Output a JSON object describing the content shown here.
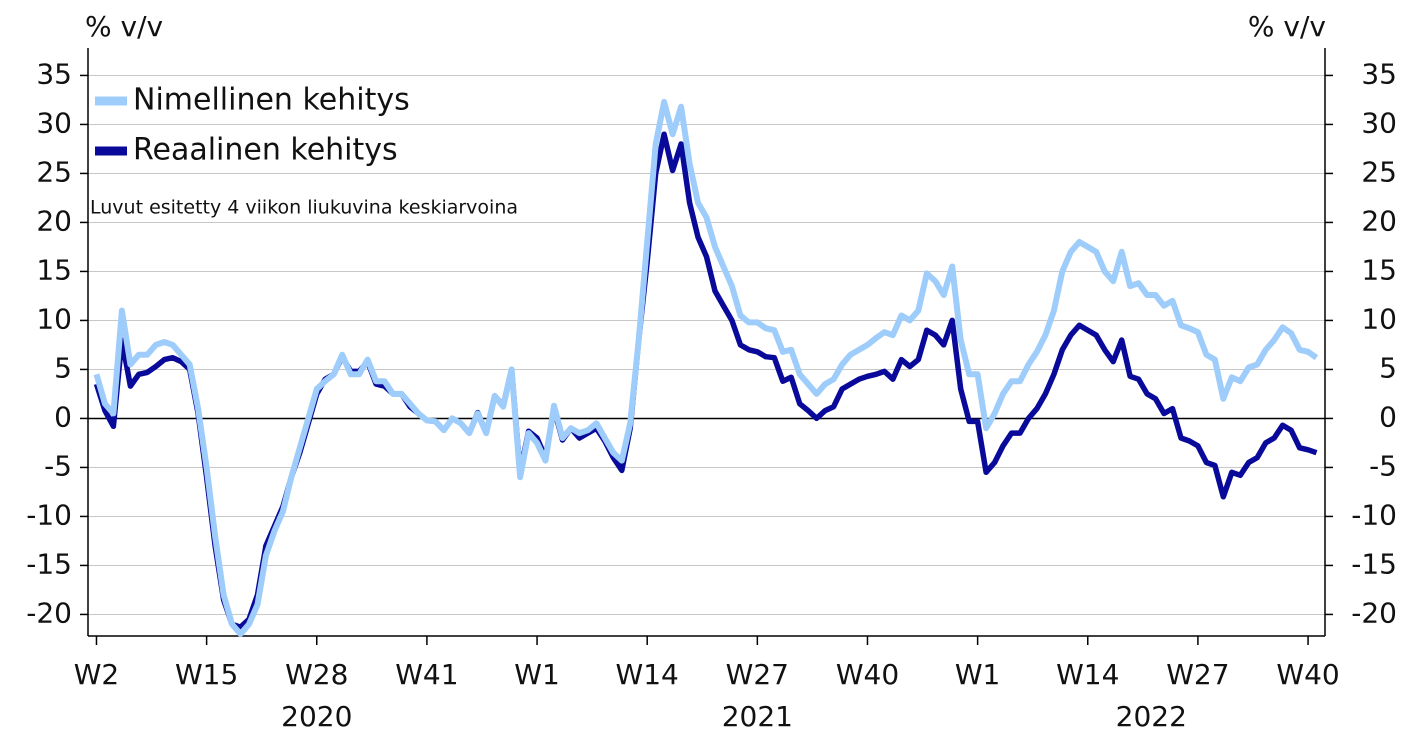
{
  "chart_data": {
    "type": "line",
    "y_label": "% v/v",
    "y2_label": "% v/v",
    "annotation": "Luvut esitetty 4 viikon liukuvina keskiarvoina",
    "legend": "upper left",
    "grid": true,
    "x": [
      0,
      1,
      2,
      3,
      4,
      5,
      6,
      7,
      8,
      9,
      10,
      11,
      12,
      13,
      14,
      15,
      16,
      17,
      18,
      19,
      20,
      21,
      22,
      23,
      24,
      25,
      26,
      27,
      28,
      29,
      30,
      31,
      32,
      33,
      34,
      35,
      36,
      37,
      38,
      39,
      40,
      41,
      42,
      43,
      44,
      45,
      46,
      47,
      48,
      49,
      50,
      51,
      52,
      53,
      54,
      55,
      56,
      57,
      58,
      59,
      60,
      61,
      62,
      63,
      64,
      65,
      66,
      67,
      68,
      69,
      70,
      71,
      72,
      73,
      74,
      75,
      76,
      77,
      78,
      79,
      80,
      81,
      82,
      83,
      84,
      85,
      86,
      87,
      88,
      89,
      90,
      91,
      92,
      93,
      94,
      95,
      96,
      97,
      98,
      99,
      100,
      101,
      102,
      103,
      104,
      105,
      106,
      107,
      108,
      109,
      110,
      111,
      112,
      113,
      114,
      115,
      116,
      117,
      118,
      119,
      120,
      121,
      122,
      123,
      124,
      125,
      126,
      127,
      128,
      129,
      130,
      131,
      132,
      133,
      134,
      135,
      136,
      137,
      138,
      139,
      140,
      141,
      142,
      143,
      144
    ],
    "xlim": [
      -1,
      145
    ],
    "xticks": [
      {
        "value": 0,
        "label": "W2"
      },
      {
        "value": 13,
        "label": "W15"
      },
      {
        "value": 26,
        "label": "W28"
      },
      {
        "value": 39,
        "label": "W41"
      },
      {
        "value": 52,
        "label": "W1"
      },
      {
        "value": 65,
        "label": "W14"
      },
      {
        "value": 78,
        "label": "W27"
      },
      {
        "value": 91,
        "label": "W40"
      },
      {
        "value": 104,
        "label": "W1"
      },
      {
        "value": 117,
        "label": "W14"
      },
      {
        "value": 130,
        "label": "W27"
      },
      {
        "value": 143,
        "label": "W40"
      }
    ],
    "year_labels": [
      {
        "value": 26,
        "label": "2020"
      },
      {
        "value": 78,
        "label": "2021"
      },
      {
        "value": 124.5,
        "label": "2022"
      }
    ],
    "ylim": [
      -22.2,
      37.8
    ],
    "yticks": [
      -20,
      -15,
      -10,
      -5,
      0,
      5,
      10,
      15,
      20,
      25,
      30,
      35
    ],
    "y2lim": [
      -22.2,
      37.8
    ],
    "y2ticks": [
      -20,
      -15,
      -10,
      -5,
      0,
      5,
      10,
      15,
      20,
      25,
      30,
      35
    ],
    "series": [
      {
        "name": "Nimellinen kehitys",
        "color": "#9fcdfb",
        "values": [
          4.5,
          1.5,
          0.5,
          11,
          5.5,
          6.5,
          6.5,
          7.5,
          7.8,
          7.5,
          6.5,
          5.5,
          1,
          -5,
          -12,
          -18,
          -21,
          -22,
          -21,
          -19,
          -14,
          -11.5,
          -9.5,
          -6,
          -3,
          0,
          3,
          3.8,
          4.5,
          6.5,
          4.5,
          4.5,
          6,
          3.8,
          3.8,
          2.5,
          2.5,
          1.5,
          0.5,
          -0.2,
          -0.3,
          -1.2,
          0,
          -0.5,
          -1.5,
          0.5,
          -1.5,
          2.3,
          1.2,
          5,
          -6,
          -1.5,
          -2.5,
          -4.3,
          1.3,
          -2,
          -1,
          -1.5,
          -1.2,
          -0.5,
          -2,
          -3.5,
          -4.3,
          -0.5,
          8,
          18,
          28,
          32.3,
          29,
          31.8,
          26,
          22,
          20.5,
          17.5,
          15.5,
          13.5,
          10.5,
          9.8,
          9.8,
          9.2,
          9,
          6.8,
          7,
          4.5,
          3.5,
          2.5,
          3.5,
          4,
          5.5,
          6.5,
          7,
          7.5,
          8.2,
          8.8,
          8.5,
          10.5,
          10,
          11,
          14.8,
          14,
          12.6,
          15.5,
          8,
          4.5,
          4.5,
          -1,
          0.5,
          2.5,
          3.8,
          3.8,
          5.5,
          6.8,
          8.5,
          11,
          15,
          17,
          18,
          17.5,
          17,
          15,
          14,
          17,
          13.5,
          13.8,
          12.6,
          12.6,
          11.5,
          12,
          9.5,
          9.2,
          8.8,
          6.5,
          6,
          2,
          4.2,
          3.8,
          5.2,
          5.5,
          7,
          8,
          9.3,
          8.7,
          7,
          6.8,
          6.2
        ]
      },
      {
        "name": "Reaalinen kehitys",
        "color": "#0a0a9a",
        "values": [
          3.5,
          0.8,
          -0.8,
          8,
          3.3,
          4.5,
          4.7,
          5.3,
          6,
          6.2,
          5.8,
          5,
          0.5,
          -6,
          -13,
          -18.5,
          -21,
          -21.3,
          -20.5,
          -18,
          -13,
          -11,
          -9,
          -6,
          -3.5,
          -0.5,
          2.5,
          4,
          4.5,
          6.3,
          4.8,
          4.8,
          5.8,
          3.5,
          3.3,
          2.5,
          2.5,
          1.2,
          0.5,
          -0.2,
          -0.3,
          -1.2,
          0,
          -0.5,
          -1.5,
          0.6,
          -1.5,
          2.3,
          1.3,
          5,
          -5.5,
          -1.3,
          -2,
          -4,
          1,
          -2.2,
          -1,
          -2,
          -1.5,
          -1,
          -2.3,
          -4,
          -5.3,
          -1,
          8,
          16,
          25,
          29,
          25.3,
          28,
          22,
          18.5,
          16.5,
          13,
          11.5,
          10,
          7.5,
          7,
          6.8,
          6.3,
          6.2,
          3.8,
          4.2,
          1.5,
          0.8,
          0,
          0.8,
          1.2,
          3,
          3.5,
          4,
          4.3,
          4.5,
          4.8,
          4,
          6,
          5.3,
          6,
          9,
          8.5,
          7.5,
          10,
          3,
          -0.3,
          -0.3,
          -5.5,
          -4.5,
          -2.8,
          -1.5,
          -1.5,
          0,
          1,
          2.5,
          4.5,
          7,
          8.5,
          9.5,
          9,
          8.5,
          7,
          5.8,
          8,
          4.3,
          4,
          2.5,
          2,
          0.5,
          1,
          -2,
          -2.3,
          -2.8,
          -4.5,
          -4.8,
          -8,
          -5.5,
          -5.8,
          -4.5,
          -4,
          -2.5,
          -2,
          -0.7,
          -1.2,
          -3,
          -3.2,
          -3.5
        ]
      }
    ]
  }
}
